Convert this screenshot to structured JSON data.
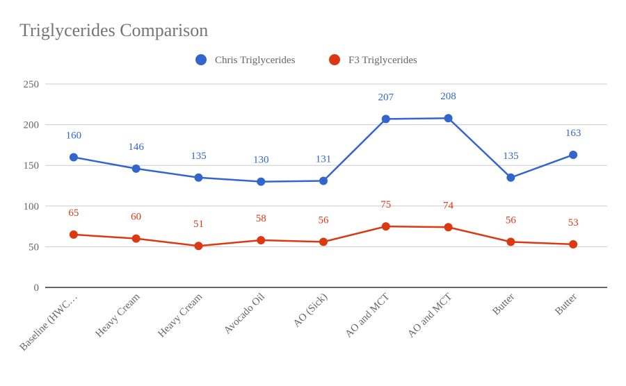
{
  "chart_data": {
    "type": "line",
    "title": "Triglycerides Comparison",
    "xlabel": "",
    "ylabel": "",
    "ylim": [
      0,
      250
    ],
    "yticks": [
      0,
      50,
      100,
      150,
      200,
      250
    ],
    "grid": true,
    "legend": "top",
    "categories": [
      "Baseline (HWC…",
      "Heavy Cream",
      "Heavy Cream",
      "Avocado Oil",
      "AO (Sick)",
      "AO and MCT",
      "AO and MCT",
      "Butter",
      "Butter"
    ],
    "series": [
      {
        "name": "Chris Triglycerides",
        "color": "#3366cc",
        "values": [
          160,
          146,
          135,
          130,
          131,
          207,
          208,
          135,
          163
        ]
      },
      {
        "name": "F3 Triglycerides",
        "color": "#dc3912",
        "values": [
          65,
          60,
          51,
          58,
          56,
          75,
          74,
          56,
          53
        ]
      }
    ],
    "data_labels": true
  }
}
